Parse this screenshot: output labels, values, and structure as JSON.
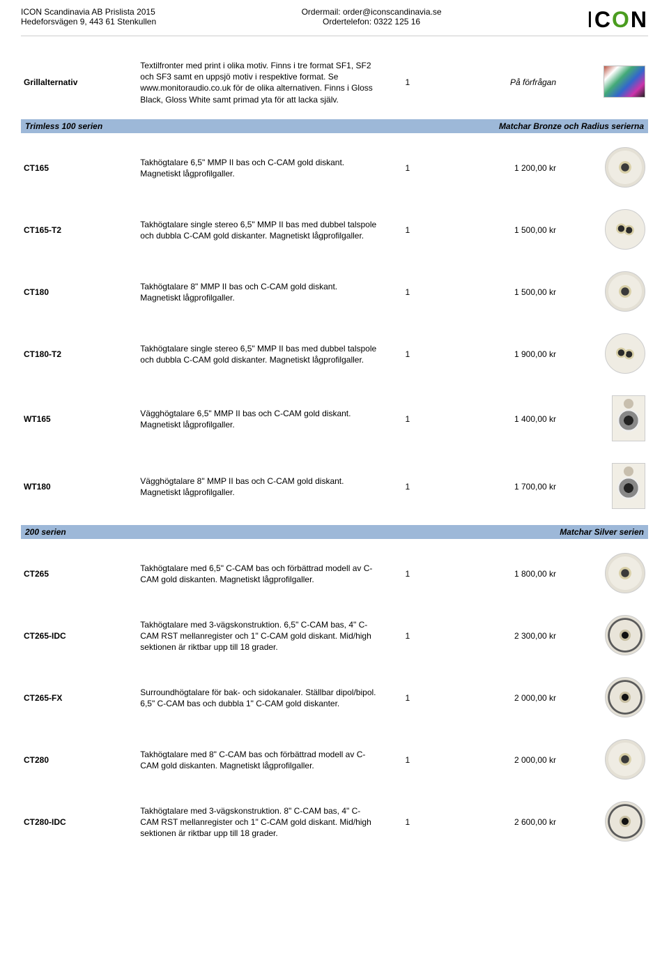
{
  "header": {
    "company_line1": "ICON Scandinavia AB Prislista 2015",
    "company_line2": "Hedeforsvägen 9, 443 61 Stenkullen",
    "center_line1": "Ordermail: order@iconscandinavia.se",
    "center_line2": "Ordertelefon: 0322 125 16",
    "logo_text": "ICON"
  },
  "colors": {
    "section_bg": "#9db8d8",
    "logo_green": "#4a9c1f"
  },
  "rows": [
    {
      "name": "Grillalternativ",
      "desc": "Textilfronter med print i olika motiv. Finns i tre format SF1, SF2 och SF3 samt en uppsjö motiv i respektive format. Se www.monitoraudio.co.uk för de olika alternativen. Finns i Gloss Black, Gloss White samt primad yta för att lacka själv.",
      "qty": "1",
      "price": "På förfrågan",
      "price_italic": true,
      "thumb": "swatch"
    }
  ],
  "section1": {
    "title": "Trimless 100 serien",
    "subtitle": "Matchar Bronze och Radius serierna"
  },
  "section1_rows": [
    {
      "name": "CT165",
      "desc": "Takhögtalare 6,5\" MMP II bas och C-CAM gold diskant. Magnetiskt lågprofilgaller.",
      "qty": "1",
      "price": "1 200,00 kr",
      "thumb": "round"
    },
    {
      "name": "CT165-T2",
      "desc": "Takhögtalare single stereo 6,5\" MMP II bas med dubbel talspole och dubbla C-CAM gold diskanter. Magnetiskt lågprofilgaller.",
      "qty": "1",
      "price": "1 500,00 kr",
      "thumb": "round-two"
    },
    {
      "name": "CT180",
      "desc": "Takhögtalare 8\" MMP II bas och C-CAM gold diskant. Magnetiskt lågprofilgaller.",
      "qty": "1",
      "price": "1 500,00 kr",
      "thumb": "round"
    },
    {
      "name": "CT180-T2",
      "desc": "Takhögtalare single stereo 6,5\" MMP II bas med dubbel talspole och dubbla C-CAM gold diskanter. Magnetiskt lågprofilgaller.",
      "qty": "1",
      "price": "1 900,00 kr",
      "thumb": "round-two"
    },
    {
      "name": "WT165",
      "desc": "Vägghögtalare 6,5\" MMP II bas och C-CAM gold diskant. Magnetiskt lågprofilgaller.",
      "qty": "1",
      "price": "1 400,00 kr",
      "thumb": "rect"
    },
    {
      "name": "WT180",
      "desc": "Vägghögtalare 8\" MMP II bas och C-CAM gold diskant. Magnetiskt lågprofilgaller.",
      "qty": "1",
      "price": "1 700,00 kr",
      "thumb": "rect"
    }
  ],
  "section2": {
    "title": "200 serien",
    "subtitle": "Matchar Silver serien"
  },
  "section2_rows": [
    {
      "name": "CT265",
      "desc": "Takhögtalare med 6,5\" C-CAM bas och förbättrad modell av C-CAM gold diskanten. Magnetiskt lågprofilgaller.",
      "qty": "1",
      "price": "1 800,00 kr",
      "thumb": "round"
    },
    {
      "name": "CT265-IDC",
      "desc": "Takhögtalare med 3-vägskonstruktion. 6,5\" C-CAM bas, 4\" C-CAM RST mellanregister och 1\" C-CAM gold diskant. Mid/high sektionen är riktbar upp till 18 grader.",
      "qty": "1",
      "price": "2 300,00 kr",
      "thumb": "round-dark"
    },
    {
      "name": "CT265-FX",
      "desc": "Surroundhögtalare för bak- och sidokanaler. Ställbar dipol/bipol. 6,5\" C-CAM bas och dubbla 1\" C-CAM gold diskanter.",
      "qty": "1",
      "price": "2 000,00 kr",
      "thumb": "round-dark"
    },
    {
      "name": "CT280",
      "desc": "Takhögtalare med 8\" C-CAM bas och förbättrad modell av C-CAM gold diskanten. Magnetiskt lågprofilgaller.",
      "qty": "1",
      "price": "2 000,00 kr",
      "thumb": "round"
    },
    {
      "name": "CT280-IDC",
      "desc": "Takhögtalare med 3-vägskonstruktion. 8\" C-CAM bas, 4\" C-CAM RST mellanregister och 1\" C-CAM gold diskant. Mid/high sektionen är riktbar upp till 18 grader.",
      "qty": "1",
      "price": "2 600,00 kr",
      "thumb": "round-dark"
    }
  ]
}
